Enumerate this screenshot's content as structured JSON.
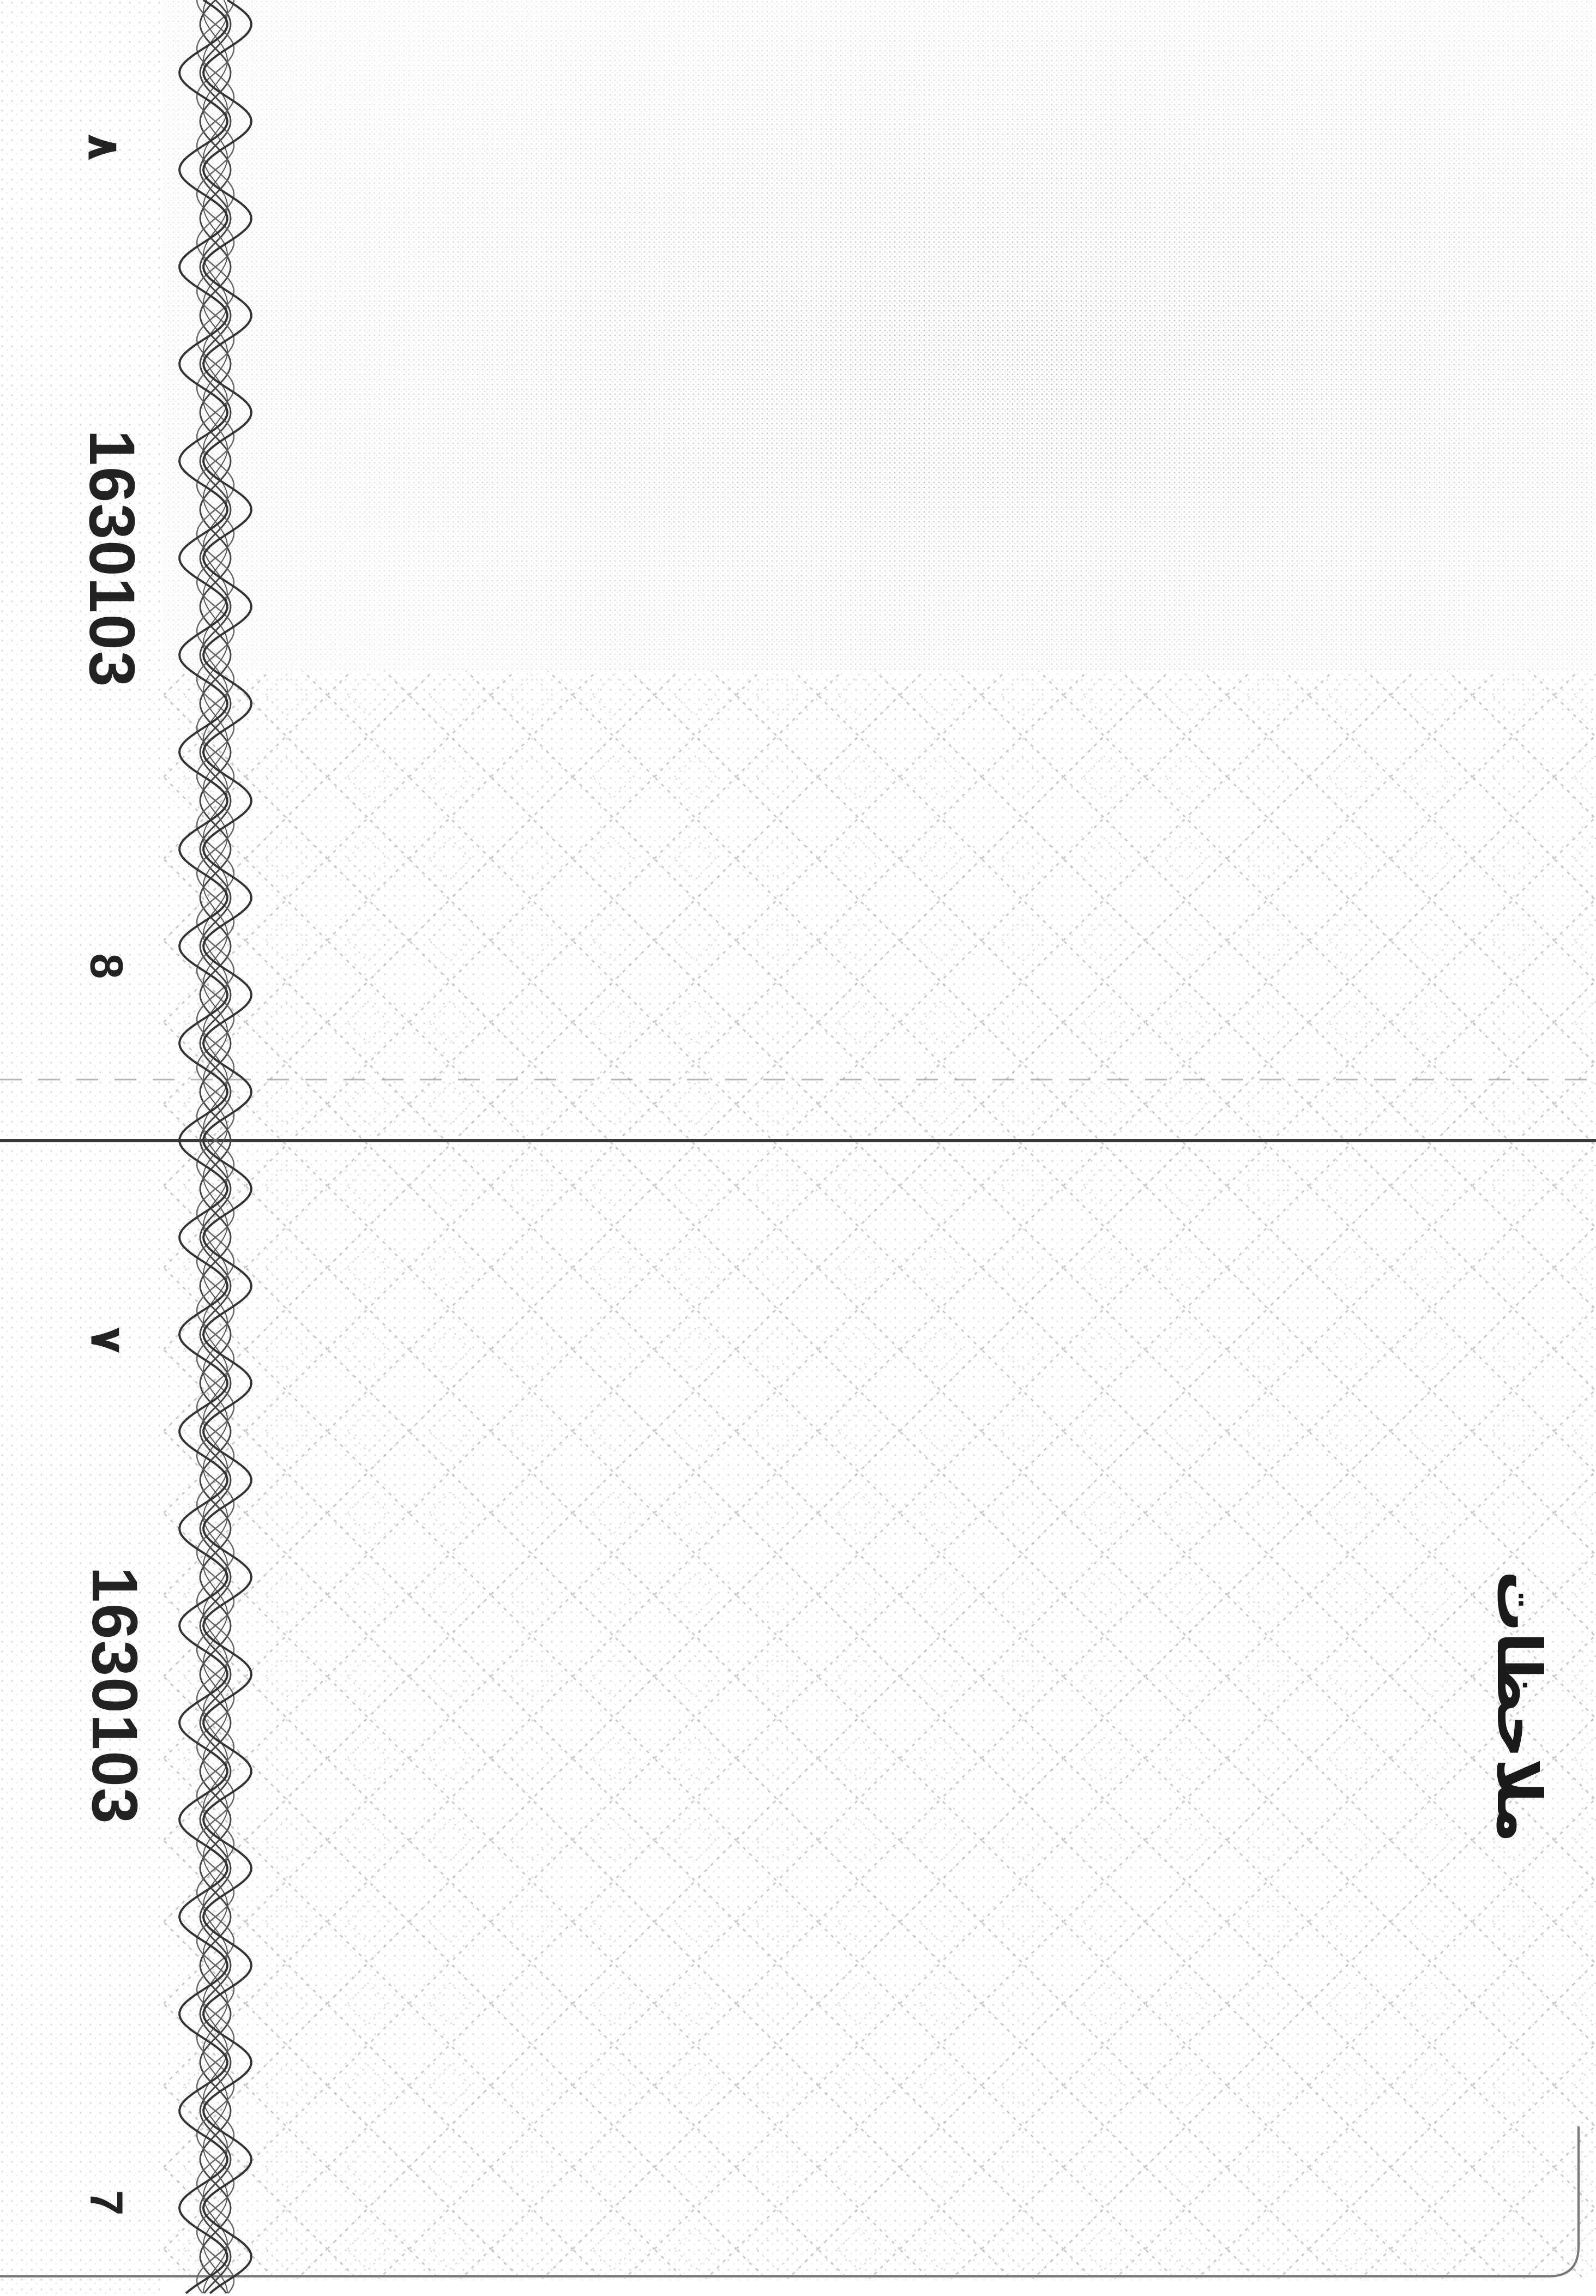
{
  "document": {
    "type": "passport visa pages (scanned, rotated 90°)",
    "colors": {
      "paper": "#ffffff",
      "ink": "#222222",
      "guilloche": "#555555",
      "pattern_dots": "#9a9a9a"
    }
  },
  "upper_page": {
    "serial_number": "1630103",
    "page_number_latin": "8",
    "page_number_arabic": "٨"
  },
  "lower_page": {
    "serial_number": "1630103",
    "page_number_latin": "7",
    "page_number_arabic": "٧",
    "notes_label": "ملاحظات"
  }
}
